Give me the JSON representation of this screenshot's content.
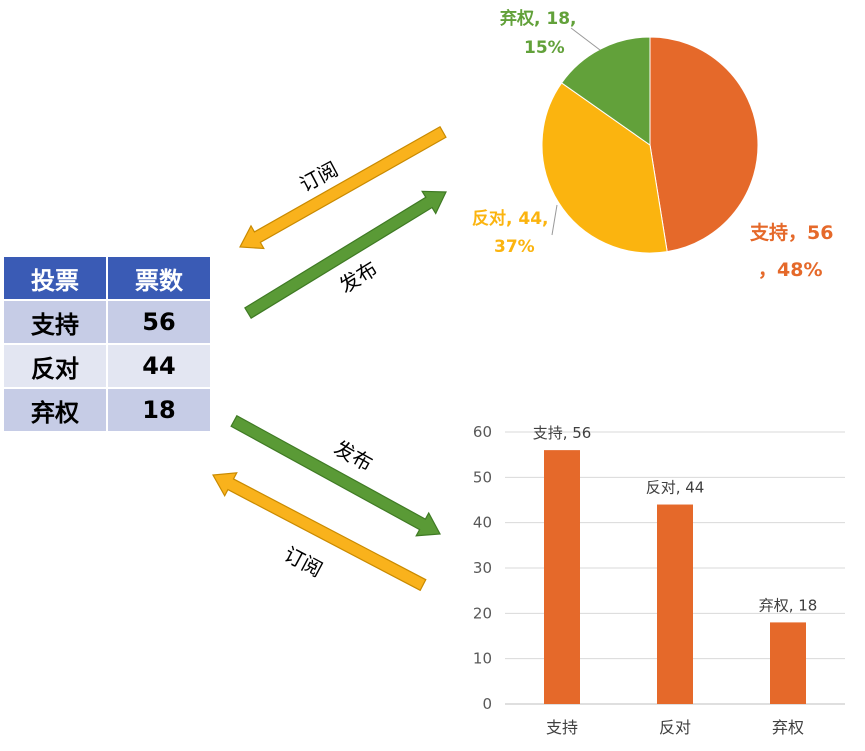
{
  "table": {
    "headers": [
      "投票",
      "票数"
    ],
    "rows": [
      {
        "option": "支持",
        "votes": "56"
      },
      {
        "option": "反对",
        "votes": "44"
      },
      {
        "option": "弃权",
        "votes": "18"
      }
    ]
  },
  "arrows": {
    "pie_subscribe": "订阅",
    "pie_publish": "发布",
    "bar_publish": "发布",
    "bar_subscribe": "订阅"
  },
  "colors": {
    "support": "#e5692a",
    "oppose": "#fbb40f",
    "abstain": "#62a13a",
    "header": "#3a5bb5",
    "publish_arrow": "#5a9a36",
    "subscribe_arrow": "#f9b21c"
  },
  "chart_data": [
    {
      "type": "pie",
      "categories": [
        "支持",
        "反对",
        "弃权"
      ],
      "values": [
        56,
        44,
        18
      ],
      "labels": [
        "支持，56，48%",
        "反对, 44, 37%",
        "弃权, 18, 15%"
      ],
      "label_lines": [
        [
          "支持，56",
          "，48%"
        ],
        [
          "反对, 44,",
          "37%"
        ],
        [
          "弃权, 18,",
          "15%"
        ]
      ]
    },
    {
      "type": "bar",
      "categories": [
        "支持",
        "反对",
        "弃权"
      ],
      "values": [
        56,
        44,
        18
      ],
      "data_labels": [
        "支持, 56",
        "反对, 44",
        "弃权, 18"
      ],
      "ylim": [
        0,
        60
      ],
      "yticks": [
        "0",
        "10",
        "20",
        "30",
        "40",
        "50",
        "60"
      ],
      "grid": true
    }
  ]
}
